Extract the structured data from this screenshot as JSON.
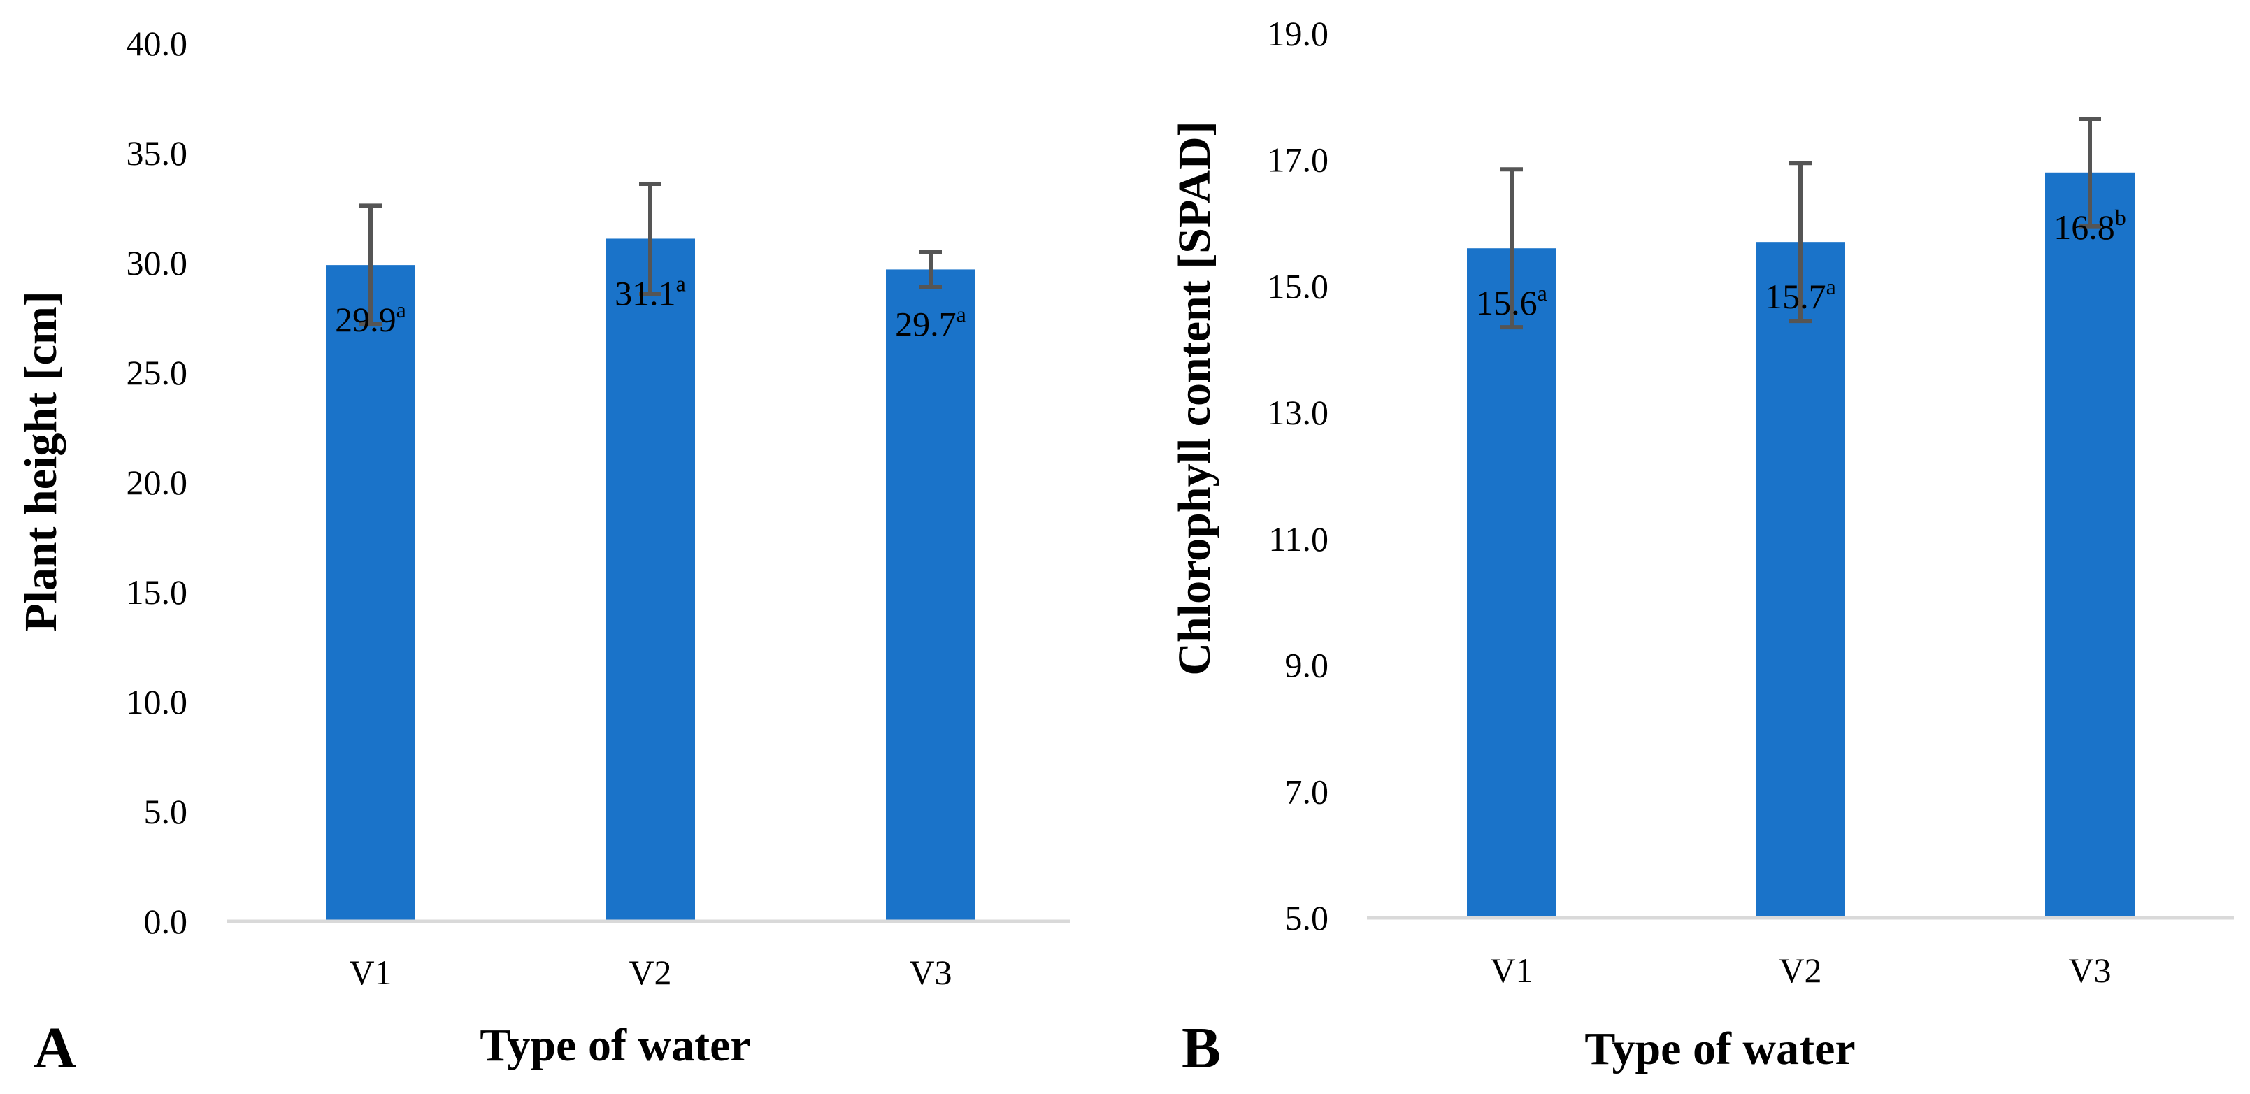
{
  "colors": {
    "bar": "#1a73c9",
    "error_bar": "#555555",
    "axis_line": "#d9d9d9"
  },
  "chart_data": [
    {
      "type": "bar",
      "panel_label": "A",
      "title": "",
      "xlabel": "Type of water",
      "ylabel": "Plant height [cm]",
      "ylim": [
        0,
        40
      ],
      "y_ticks": [
        "0.0",
        "5.0",
        "10.0",
        "15.0",
        "20.0",
        "25.0",
        "30.0",
        "35.0",
        "40.0"
      ],
      "grid": false,
      "legend": "none",
      "categories": [
        "V1",
        "V2",
        "V3"
      ],
      "values": [
        29.9,
        31.1,
        29.7
      ],
      "value_labels": [
        "29.9",
        "31.1",
        "29.7"
      ],
      "significance_letters": [
        "a",
        "a",
        "a"
      ],
      "error": [
        2.7,
        2.5,
        0.8
      ]
    },
    {
      "type": "bar",
      "panel_label": "B",
      "title": "",
      "xlabel": "Type of water",
      "ylabel": "Chlorophyll content [SPAD]",
      "ylim": [
        5,
        19
      ],
      "y_ticks": [
        "5.0",
        "7.0",
        "9.0",
        "11.0",
        "13.0",
        "15.0",
        "17.0",
        "19.0"
      ],
      "grid": false,
      "legend": "none",
      "categories": [
        "V1",
        "V2",
        "V3"
      ],
      "values": [
        15.6,
        15.7,
        16.8
      ],
      "value_labels": [
        "15.6",
        "15.7",
        "16.8"
      ],
      "significance_letters": [
        "a",
        "a",
        "b"
      ],
      "error": [
        1.25,
        1.25,
        0.85
      ]
    }
  ]
}
